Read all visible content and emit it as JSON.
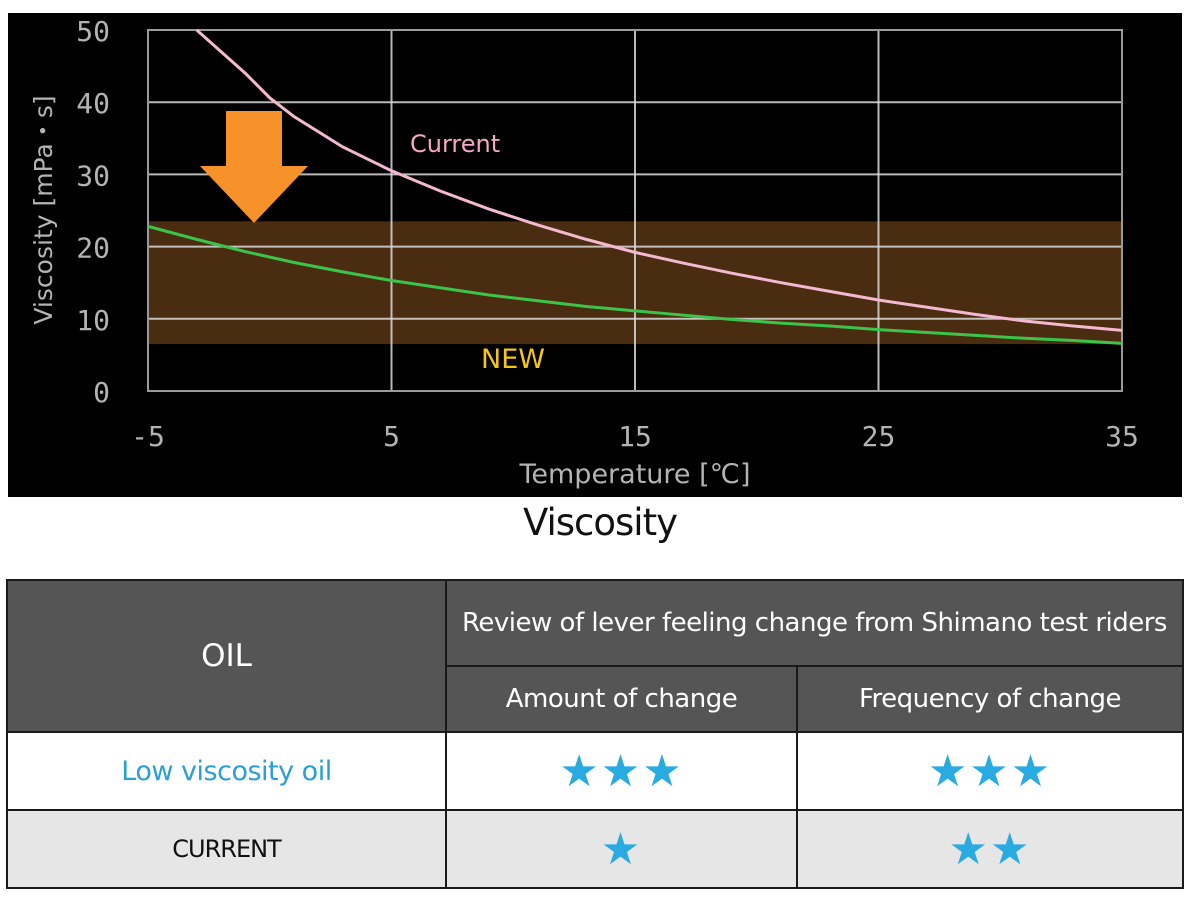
{
  "chart_data": {
    "type": "line",
    "xlabel": "Temperature [℃]",
    "ylabel": "Viscosity [mPa・s]",
    "xlim": [
      -5,
      35
    ],
    "ylim": [
      0,
      50
    ],
    "xticks": [
      "-5",
      "5",
      "15",
      "25",
      "35"
    ],
    "xtick_values": [
      -5,
      5,
      15,
      25,
      35
    ],
    "yticks": [
      "0",
      "10",
      "20",
      "30",
      "40",
      "50"
    ],
    "ytick_values": [
      0,
      10,
      20,
      30,
      40,
      50
    ],
    "grid": true,
    "highlight_band": {
      "from": 6.5,
      "to": 23.5,
      "color": "#4a2c10"
    },
    "series": [
      {
        "name": "Current",
        "color": "#f4b8d0",
        "x": [
          -3,
          -1,
          0,
          1,
          3,
          5,
          7,
          9,
          11,
          13,
          15,
          17,
          19,
          21,
          23,
          25,
          27,
          29,
          31,
          33,
          35
        ],
        "y": [
          50,
          44,
          40.6,
          38,
          33.8,
          30.5,
          27.7,
          25.2,
          23.0,
          21.0,
          19.2,
          17.7,
          16.3,
          15.0,
          13.8,
          12.6,
          11.6,
          10.6,
          9.7,
          9.0,
          8.4
        ]
      },
      {
        "name": "NEW",
        "color": "#3cc44a",
        "x": [
          -5,
          -3,
          -1,
          1,
          3,
          5,
          7,
          9,
          11,
          13,
          15,
          17,
          19,
          21,
          23,
          25,
          27,
          29,
          31,
          33,
          35
        ],
        "y": [
          22.8,
          21.0,
          19.3,
          17.8,
          16.5,
          15.3,
          14.3,
          13.3,
          12.5,
          11.7,
          11.1,
          10.5,
          9.9,
          9.4,
          9.0,
          8.5,
          8.1,
          7.7,
          7.3,
          7.0,
          6.6
        ]
      }
    ],
    "annotations": [
      {
        "text": "Current",
        "color": "#f4a8c8"
      },
      {
        "text": "NEW",
        "color": "#f5c518"
      }
    ],
    "arrow": {
      "color": "#f7922a",
      "direction": "down"
    },
    "colors": {
      "background": "#000000",
      "grid": "#d9d9d9",
      "axis_text": "#b3b3b3"
    }
  },
  "caption": "Viscosity",
  "table": {
    "oil_header": "OIL",
    "review_header": "Review of lever feeling change from Shimano test riders",
    "col_amount": "Amount of change",
    "col_frequency": "Frequency of change",
    "star_color": "#29abe2",
    "rows": [
      {
        "oil": "Low viscosity oil",
        "oil_color": "#2a9fd6",
        "amount_stars": 3,
        "frequency_stars": 3,
        "amount_display": "★★★",
        "frequency_display": "★★★"
      },
      {
        "oil": "CURRENT",
        "oil_color": "#111111",
        "amount_stars": 1,
        "frequency_stars": 2,
        "amount_display": "★",
        "frequency_display": "★★"
      }
    ]
  }
}
